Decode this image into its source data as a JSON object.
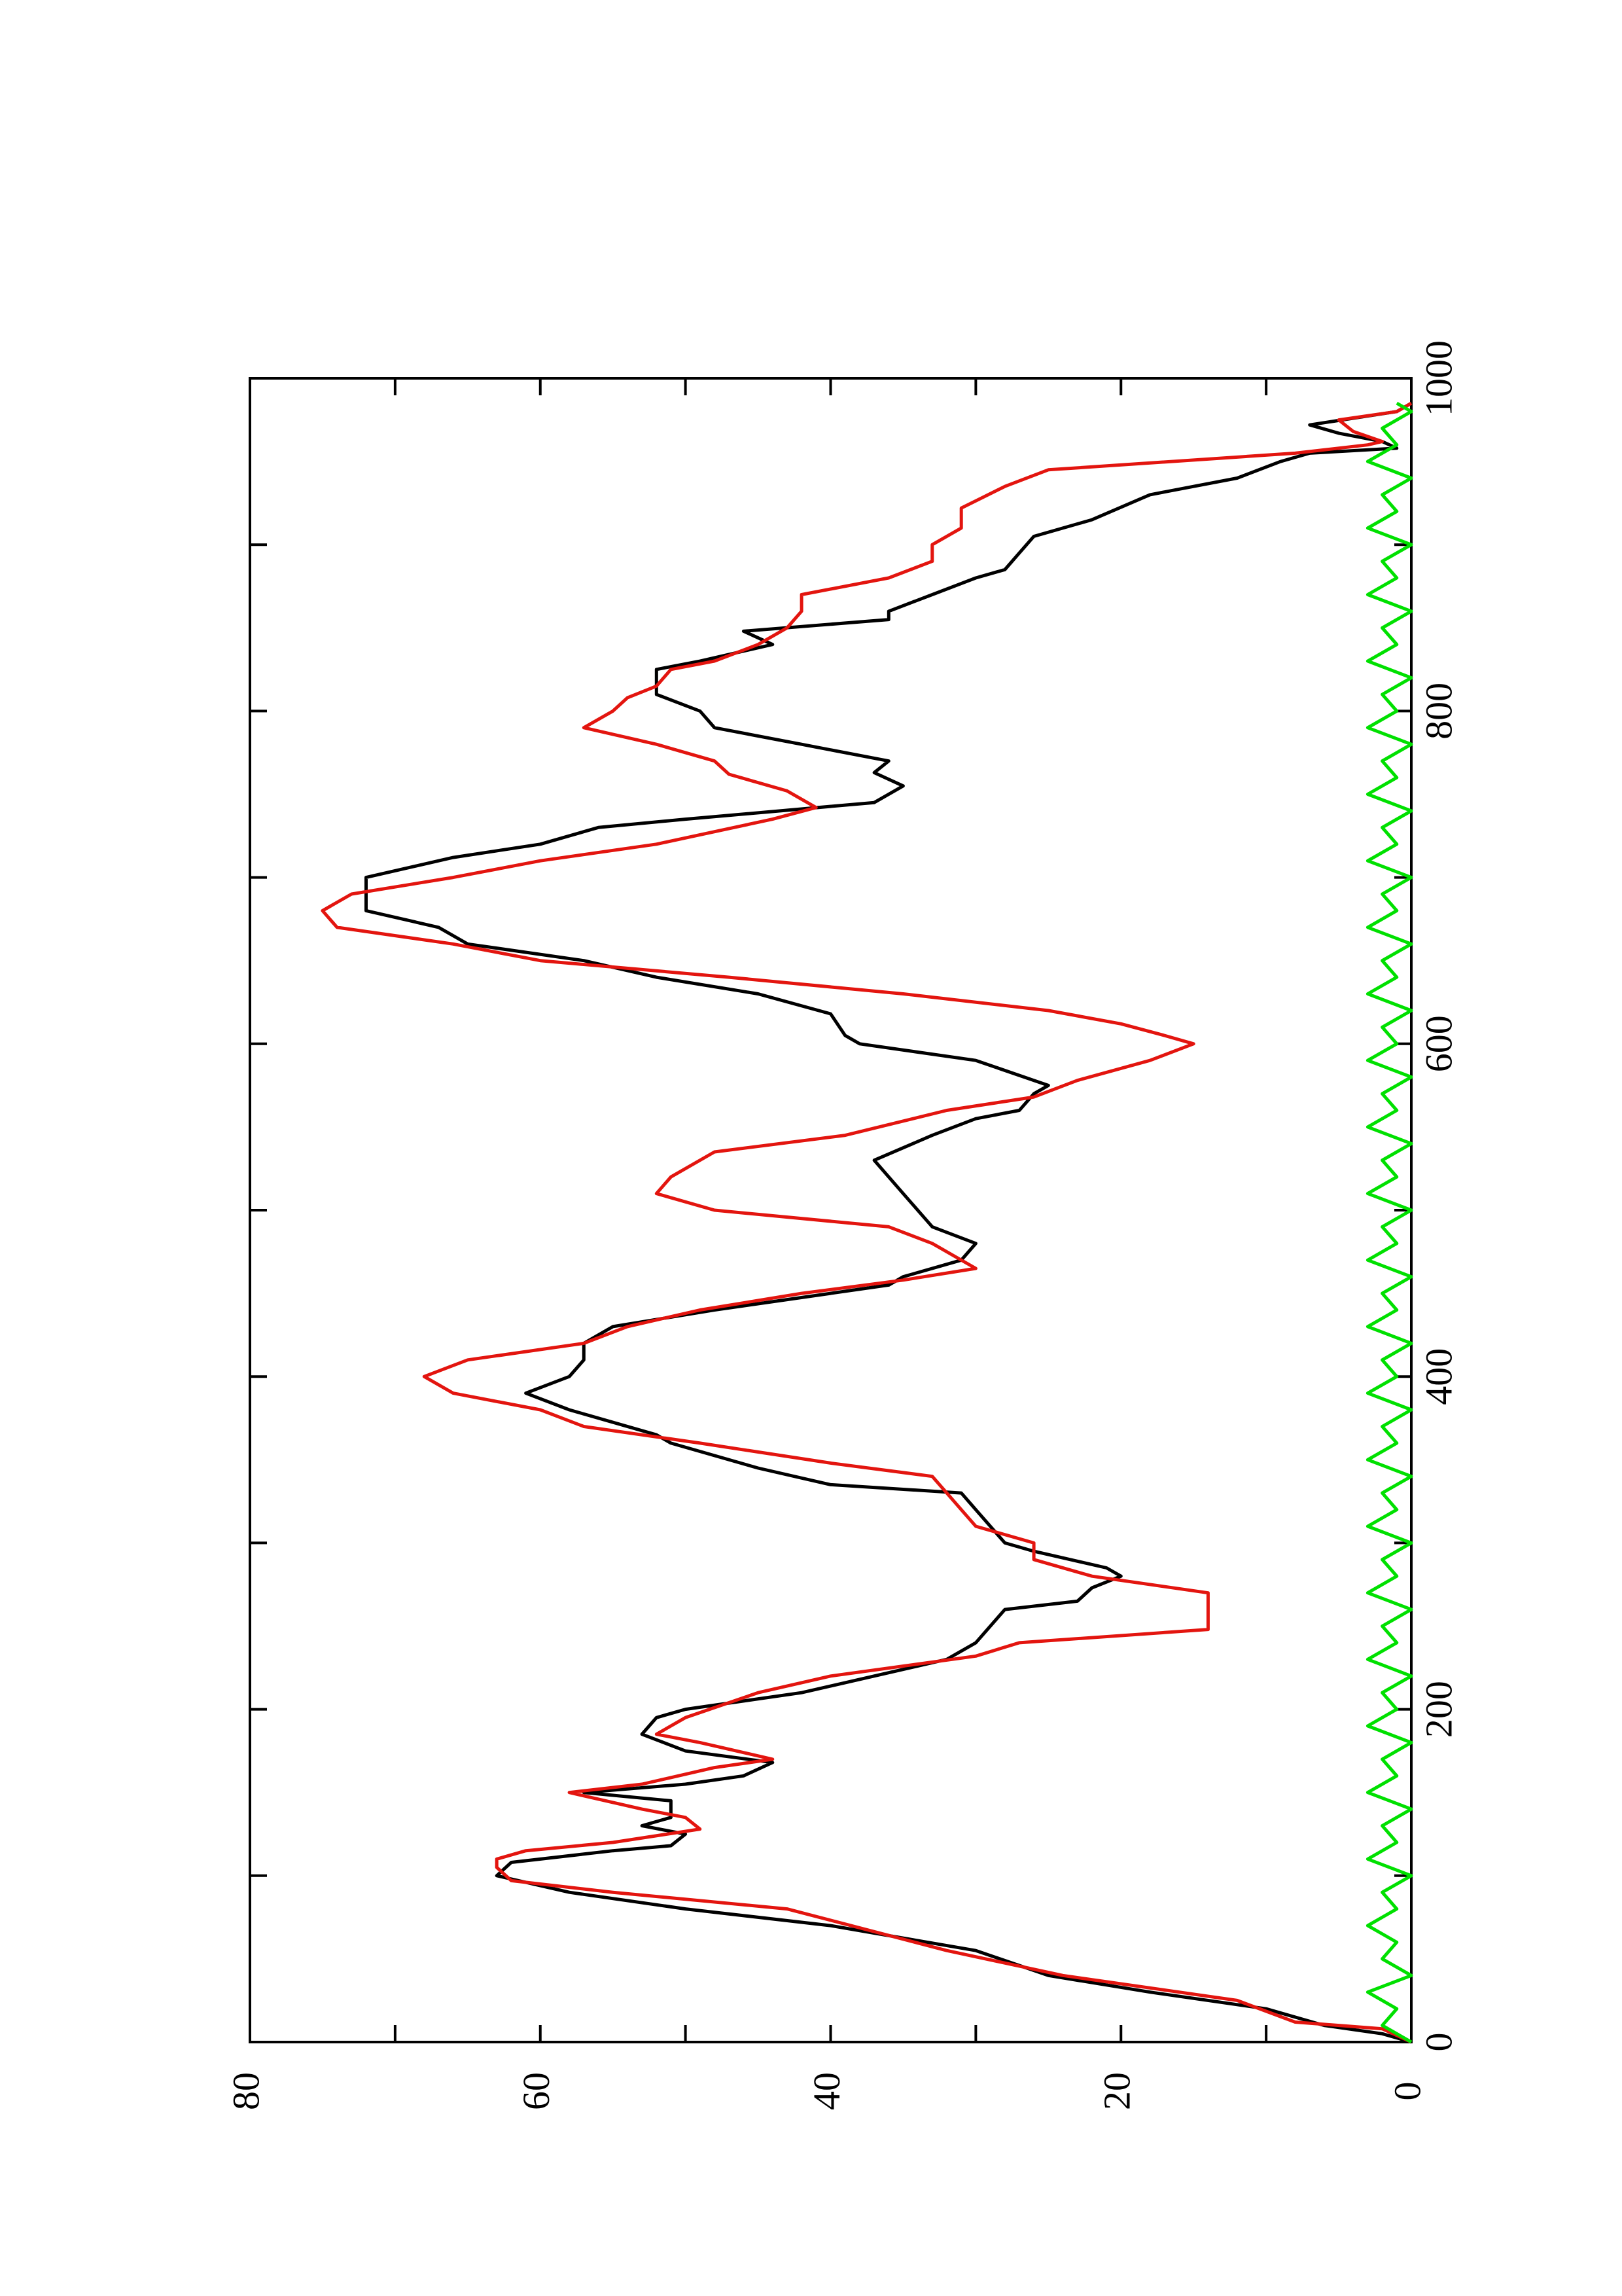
{
  "chart_data": {
    "type": "line",
    "title": "",
    "xlabel": "",
    "ylabel": "",
    "orientation": "rotated-90",
    "xlim": [
      0,
      1000
    ],
    "ylim": [
      0,
      80
    ],
    "x_ticks": [
      "0",
      "200",
      "400",
      "600",
      "800",
      "1000"
    ],
    "y_ticks": [
      "0",
      "20",
      "40",
      "60",
      "80"
    ],
    "grid": false,
    "legend": "none",
    "series": [
      {
        "color": "#000000",
        "points": [
          [
            0,
            0
          ],
          [
            5,
            2
          ],
          [
            10,
            6
          ],
          [
            20,
            10
          ],
          [
            30,
            18
          ],
          [
            40,
            25
          ],
          [
            55,
            30
          ],
          [
            70,
            40
          ],
          [
            80,
            50
          ],
          [
            90,
            58
          ],
          [
            100,
            63
          ],
          [
            108,
            62
          ],
          [
            115,
            55
          ],
          [
            118,
            51
          ],
          [
            125,
            50
          ],
          [
            130,
            53
          ],
          [
            135,
            51
          ],
          [
            145,
            51
          ],
          [
            150,
            57
          ],
          [
            155,
            50
          ],
          [
            160,
            46
          ],
          [
            168,
            44
          ],
          [
            175,
            50
          ],
          [
            185,
            53
          ],
          [
            195,
            52
          ],
          [
            200,
            50
          ],
          [
            210,
            42
          ],
          [
            222,
            36
          ],
          [
            230,
            32
          ],
          [
            240,
            30
          ],
          [
            260,
            28
          ],
          [
            265,
            23
          ],
          [
            273,
            22
          ],
          [
            280,
            20
          ],
          [
            285,
            21
          ],
          [
            295,
            26
          ],
          [
            300,
            28
          ],
          [
            320,
            30
          ],
          [
            330,
            31
          ],
          [
            335,
            40
          ],
          [
            345,
            45
          ],
          [
            360,
            51
          ],
          [
            365,
            52
          ],
          [
            380,
            58
          ],
          [
            390,
            61
          ],
          [
            400,
            58
          ],
          [
            410,
            57
          ],
          [
            420,
            57
          ],
          [
            430,
            55
          ],
          [
            440,
            48
          ],
          [
            450,
            40
          ],
          [
            455,
            36
          ],
          [
            460,
            35
          ],
          [
            470,
            31
          ],
          [
            480,
            30
          ],
          [
            490,
            33
          ],
          [
            500,
            34
          ],
          [
            510,
            35
          ],
          [
            530,
            37
          ],
          [
            545,
            33
          ],
          [
            555,
            30
          ],
          [
            560,
            27
          ],
          [
            570,
            26
          ],
          [
            575,
            25
          ],
          [
            590,
            30
          ],
          [
            600,
            38
          ],
          [
            605,
            39
          ],
          [
            618,
            40
          ],
          [
            630,
            45
          ],
          [
            640,
            52
          ],
          [
            650,
            57
          ],
          [
            660,
            65
          ],
          [
            670,
            67
          ],
          [
            680,
            72
          ],
          [
            690,
            72
          ],
          [
            700,
            72
          ],
          [
            712,
            66
          ],
          [
            720,
            60
          ],
          [
            730,
            56
          ],
          [
            735,
            50
          ],
          [
            745,
            37
          ],
          [
            755,
            35
          ],
          [
            763,
            37
          ],
          [
            770,
            36
          ],
          [
            780,
            42
          ],
          [
            790,
            48
          ],
          [
            800,
            49
          ],
          [
            810,
            52
          ],
          [
            820,
            52
          ],
          [
            825,
            52
          ],
          [
            830,
            49
          ],
          [
            840,
            44
          ],
          [
            848,
            46
          ],
          [
            855,
            36
          ],
          [
            860,
            36
          ],
          [
            870,
            33
          ],
          [
            880,
            30
          ],
          [
            885,
            28
          ],
          [
            895,
            27
          ],
          [
            905,
            26
          ],
          [
            915,
            22
          ],
          [
            930,
            18
          ],
          [
            940,
            12
          ],
          [
            950,
            9
          ],
          [
            955,
            7
          ],
          [
            958,
            1
          ],
          [
            962,
            2
          ],
          [
            967,
            5
          ],
          [
            972,
            7
          ],
          [
            980,
            1
          ],
          [
            985,
            0
          ]
        ]
      },
      {
        "color": "#e3150f",
        "points": [
          [
            0,
            0
          ],
          [
            8,
            2
          ],
          [
            12,
            8
          ],
          [
            25,
            12
          ],
          [
            40,
            24
          ],
          [
            55,
            32
          ],
          [
            80,
            43
          ],
          [
            90,
            55
          ],
          [
            97,
            62
          ],
          [
            105,
            63
          ],
          [
            110,
            63
          ],
          [
            115,
            61
          ],
          [
            120,
            55
          ],
          [
            128,
            49
          ],
          [
            135,
            50
          ],
          [
            140,
            53
          ],
          [
            150,
            58
          ],
          [
            155,
            53
          ],
          [
            165,
            48
          ],
          [
            170,
            44
          ],
          [
            180,
            49
          ],
          [
            185,
            52
          ],
          [
            195,
            50
          ],
          [
            210,
            45
          ],
          [
            220,
            40
          ],
          [
            232,
            30
          ],
          [
            240,
            27
          ],
          [
            248,
            14
          ],
          [
            258,
            14
          ],
          [
            270,
            14
          ],
          [
            280,
            22
          ],
          [
            290,
            26
          ],
          [
            300,
            26
          ],
          [
            310,
            30
          ],
          [
            320,
            31
          ],
          [
            330,
            32
          ],
          [
            340,
            33
          ],
          [
            348,
            40
          ],
          [
            360,
            49
          ],
          [
            370,
            57
          ],
          [
            380,
            60
          ],
          [
            390,
            66
          ],
          [
            400,
            68
          ],
          [
            410,
            65
          ],
          [
            420,
            57
          ],
          [
            430,
            54
          ],
          [
            440,
            49
          ],
          [
            450,
            42
          ],
          [
            458,
            35
          ],
          [
            465,
            30
          ],
          [
            480,
            33
          ],
          [
            490,
            36
          ],
          [
            500,
            48
          ],
          [
            510,
            52
          ],
          [
            520,
            51
          ],
          [
            535,
            48
          ],
          [
            545,
            39
          ],
          [
            560,
            32
          ],
          [
            568,
            26
          ],
          [
            578,
            23
          ],
          [
            590,
            18
          ],
          [
            600,
            15
          ],
          [
            605,
            17
          ],
          [
            612,
            20
          ],
          [
            620,
            25
          ],
          [
            630,
            35
          ],
          [
            640,
            47
          ],
          [
            650,
            60
          ],
          [
            660,
            66
          ],
          [
            670,
            74
          ],
          [
            680,
            75
          ],
          [
            690,
            73
          ],
          [
            700,
            66
          ],
          [
            710,
            60
          ],
          [
            720,
            52
          ],
          [
            735,
            44
          ],
          [
            742,
            41
          ],
          [
            752,
            43
          ],
          [
            762,
            47
          ],
          [
            770,
            48
          ],
          [
            780,
            52
          ],
          [
            790,
            57
          ],
          [
            800,
            55
          ],
          [
            808,
            54
          ],
          [
            815,
            52
          ],
          [
            825,
            51
          ],
          [
            830,
            48
          ],
          [
            840,
            45
          ],
          [
            850,
            43
          ],
          [
            860,
            42
          ],
          [
            870,
            42
          ],
          [
            880,
            36
          ],
          [
            890,
            33
          ],
          [
            900,
            33
          ],
          [
            910,
            31
          ],
          [
            922,
            31
          ],
          [
            935,
            28
          ],
          [
            945,
            25
          ],
          [
            955,
            8
          ],
          [
            960,
            3
          ],
          [
            962,
            2
          ],
          [
            968,
            4
          ],
          [
            975,
            5
          ],
          [
            980,
            1
          ],
          [
            985,
            0
          ]
        ]
      },
      {
        "color": "#00e000",
        "points": [
          [
            0,
            0
          ],
          [
            10,
            2
          ],
          [
            20,
            1
          ],
          [
            30,
            3
          ],
          [
            40,
            0
          ],
          [
            50,
            2
          ],
          [
            60,
            1
          ],
          [
            70,
            3
          ],
          [
            80,
            1
          ],
          [
            90,
            2
          ],
          [
            100,
            0
          ],
          [
            110,
            3
          ],
          [
            120,
            1
          ],
          [
            130,
            2
          ],
          [
            140,
            0
          ],
          [
            150,
            3
          ],
          [
            160,
            1
          ],
          [
            170,
            2
          ],
          [
            180,
            0
          ],
          [
            190,
            3
          ],
          [
            200,
            1
          ],
          [
            210,
            2
          ],
          [
            220,
            0
          ],
          [
            230,
            3
          ],
          [
            240,
            1
          ],
          [
            250,
            2
          ],
          [
            260,
            0
          ],
          [
            270,
            3
          ],
          [
            280,
            1
          ],
          [
            290,
            2
          ],
          [
            300,
            0
          ],
          [
            310,
            3
          ],
          [
            320,
            1
          ],
          [
            330,
            2
          ],
          [
            340,
            0
          ],
          [
            350,
            3
          ],
          [
            360,
            1
          ],
          [
            370,
            2
          ],
          [
            380,
            0
          ],
          [
            390,
            3
          ],
          [
            400,
            1
          ],
          [
            410,
            2
          ],
          [
            420,
            0
          ],
          [
            430,
            3
          ],
          [
            440,
            1
          ],
          [
            450,
            2
          ],
          [
            460,
            0
          ],
          [
            470,
            3
          ],
          [
            480,
            1
          ],
          [
            490,
            2
          ],
          [
            500,
            0
          ],
          [
            510,
            3
          ],
          [
            520,
            1
          ],
          [
            530,
            2
          ],
          [
            540,
            0
          ],
          [
            550,
            3
          ],
          [
            560,
            1
          ],
          [
            570,
            2
          ],
          [
            580,
            0
          ],
          [
            590,
            3
          ],
          [
            600,
            1
          ],
          [
            610,
            2
          ],
          [
            620,
            0
          ],
          [
            630,
            3
          ],
          [
            640,
            1
          ],
          [
            650,
            2
          ],
          [
            660,
            0
          ],
          [
            670,
            3
          ],
          [
            680,
            1
          ],
          [
            690,
            2
          ],
          [
            700,
            0
          ],
          [
            710,
            3
          ],
          [
            720,
            1
          ],
          [
            730,
            2
          ],
          [
            740,
            0
          ],
          [
            750,
            3
          ],
          [
            760,
            1
          ],
          [
            770,
            2
          ],
          [
            780,
            0
          ],
          [
            790,
            3
          ],
          [
            800,
            1
          ],
          [
            810,
            2
          ],
          [
            820,
            0
          ],
          [
            830,
            3
          ],
          [
            840,
            1
          ],
          [
            850,
            2
          ],
          [
            860,
            0
          ],
          [
            870,
            3
          ],
          [
            880,
            1
          ],
          [
            890,
            2
          ],
          [
            900,
            0
          ],
          [
            910,
            3
          ],
          [
            920,
            1
          ],
          [
            930,
            2
          ],
          [
            940,
            0
          ],
          [
            950,
            3
          ],
          [
            960,
            1
          ],
          [
            970,
            2
          ],
          [
            980,
            0
          ],
          [
            985,
            1
          ]
        ]
      }
    ]
  }
}
